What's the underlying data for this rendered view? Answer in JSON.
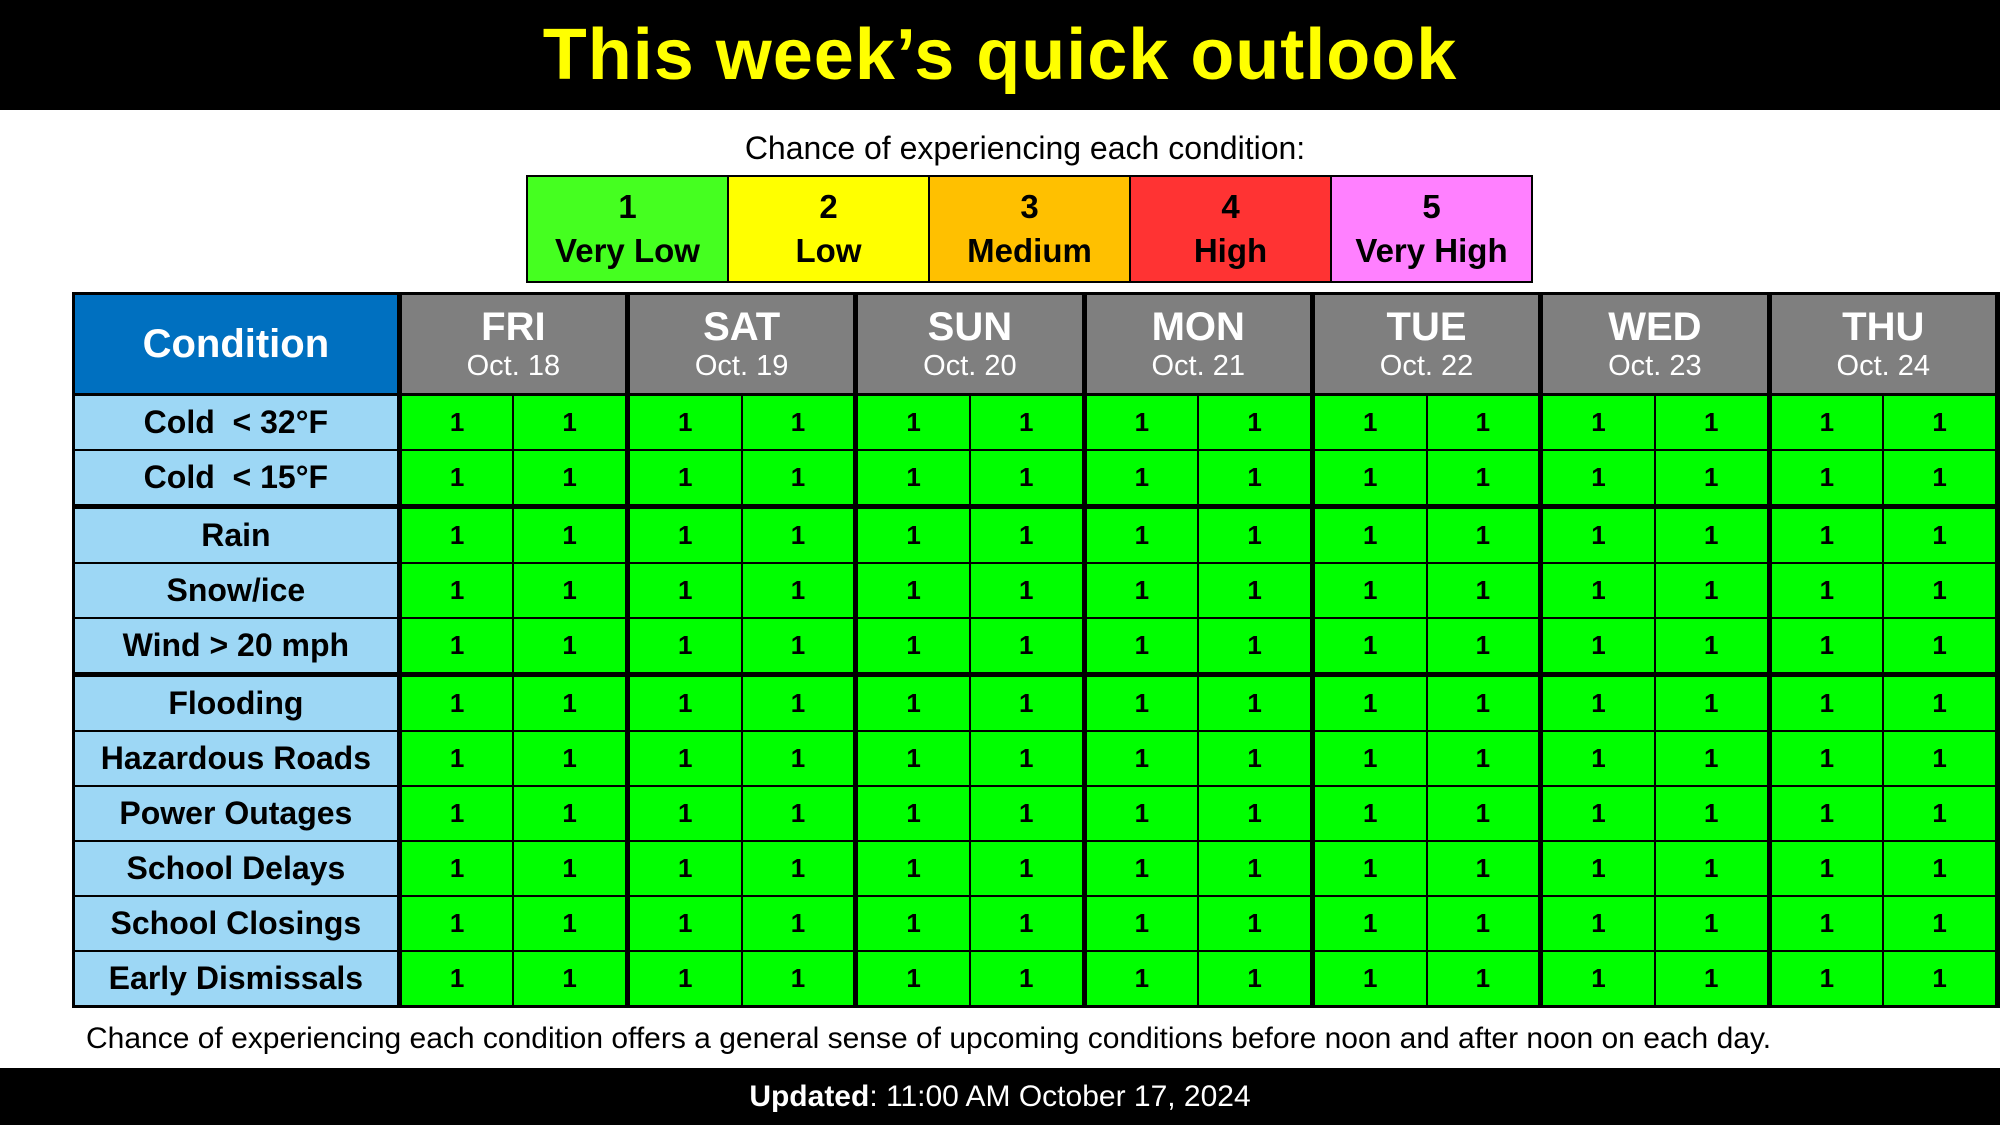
{
  "title": "This week’s quick outlook",
  "legend": {
    "caption": "Chance of experiencing each condition:",
    "levels": [
      {
        "number": "1",
        "label": "Very Low",
        "color": "#45ff20"
      },
      {
        "number": "2",
        "label": "Low",
        "color": "#ffff00"
      },
      {
        "number": "3",
        "label": "Medium",
        "color": "#ffc000"
      },
      {
        "number": "4",
        "label": "High",
        "color": "#ff3333"
      },
      {
        "number": "5",
        "label": "Very High",
        "color": "#ff80ff"
      }
    ]
  },
  "table": {
    "condition_header": "Condition",
    "days": [
      {
        "name": "FRI",
        "date": "Oct. 18"
      },
      {
        "name": "SAT",
        "date": "Oct. 19"
      },
      {
        "name": "SUN",
        "date": "Oct. 20"
      },
      {
        "name": "MON",
        "date": "Oct. 21"
      },
      {
        "name": "TUE",
        "date": "Oct. 22"
      },
      {
        "name": "WED",
        "date": "Oct. 23"
      },
      {
        "name": "THU",
        "date": "Oct. 24"
      }
    ],
    "rows": [
      {
        "condition": "Cold  < 32°F",
        "values": [
          "1",
          "1",
          "1",
          "1",
          "1",
          "1",
          "1",
          "1",
          "1",
          "1",
          "1",
          "1",
          "1",
          "1"
        ]
      },
      {
        "condition": "Cold  < 15°F",
        "values": [
          "1",
          "1",
          "1",
          "1",
          "1",
          "1",
          "1",
          "1",
          "1",
          "1",
          "1",
          "1",
          "1",
          "1"
        ]
      },
      {
        "condition": "Rain",
        "values": [
          "1",
          "1",
          "1",
          "1",
          "1",
          "1",
          "1",
          "1",
          "1",
          "1",
          "1",
          "1",
          "1",
          "1"
        ]
      },
      {
        "condition": "Snow/ice",
        "values": [
          "1",
          "1",
          "1",
          "1",
          "1",
          "1",
          "1",
          "1",
          "1",
          "1",
          "1",
          "1",
          "1",
          "1"
        ]
      },
      {
        "condition": "Wind > 20 mph",
        "values": [
          "1",
          "1",
          "1",
          "1",
          "1",
          "1",
          "1",
          "1",
          "1",
          "1",
          "1",
          "1",
          "1",
          "1"
        ]
      },
      {
        "condition": "Flooding",
        "values": [
          "1",
          "1",
          "1",
          "1",
          "1",
          "1",
          "1",
          "1",
          "1",
          "1",
          "1",
          "1",
          "1",
          "1"
        ]
      },
      {
        "condition": "Hazardous Roads",
        "values": [
          "1",
          "1",
          "1",
          "1",
          "1",
          "1",
          "1",
          "1",
          "1",
          "1",
          "1",
          "1",
          "1",
          "1"
        ]
      },
      {
        "condition": "Power Outages",
        "values": [
          "1",
          "1",
          "1",
          "1",
          "1",
          "1",
          "1",
          "1",
          "1",
          "1",
          "1",
          "1",
          "1",
          "1"
        ]
      },
      {
        "condition": "School Delays",
        "values": [
          "1",
          "1",
          "1",
          "1",
          "1",
          "1",
          "1",
          "1",
          "1",
          "1",
          "1",
          "1",
          "1",
          "1"
        ]
      },
      {
        "condition": "School Closings",
        "values": [
          "1",
          "1",
          "1",
          "1",
          "1",
          "1",
          "1",
          "1",
          "1",
          "1",
          "1",
          "1",
          "1",
          "1"
        ]
      },
      {
        "condition": "Early Dismissals",
        "values": [
          "1",
          "1",
          "1",
          "1",
          "1",
          "1",
          "1",
          "1",
          "1",
          "1",
          "1",
          "1",
          "1",
          "1"
        ]
      }
    ]
  },
  "footnote": "Chance of experiencing each condition offers a general sense of upcoming conditions before noon and after noon on each day.",
  "updated": {
    "label": "Updated",
    "value": ": 11:00 AM October 17, 2024"
  }
}
